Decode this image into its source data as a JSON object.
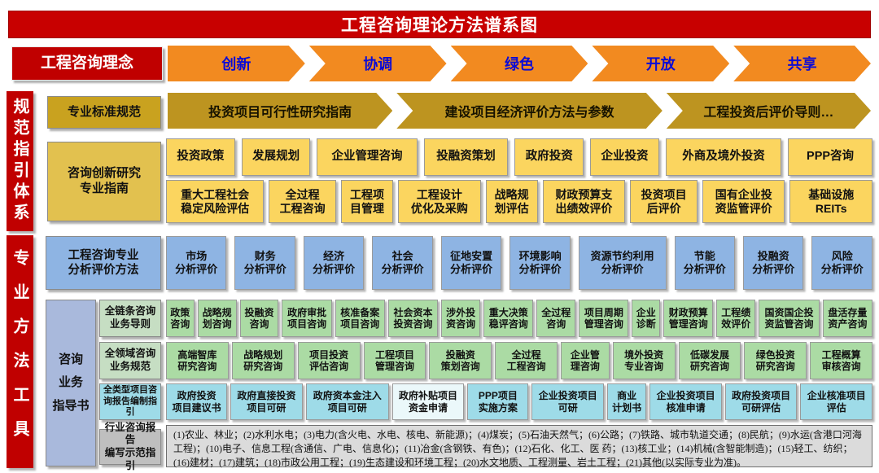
{
  "title": "工程咨询理论方法谱系图",
  "concepts": {
    "label": "工程咨询理念",
    "items": [
      "创新",
      "协调",
      "绿色",
      "开放",
      "共享"
    ]
  },
  "side_bars": {
    "top": "规范指引体系",
    "bottom": "专业方法工具"
  },
  "standards": {
    "label": "专业标准规范",
    "items": [
      "投资项目可行性研究指南",
      "建设项目经济评价方法与参数",
      "工程投资后评价导则…"
    ]
  },
  "innovation_guides": {
    "label": "咨询创新研究\n专业指南",
    "row1": [
      "投资政策",
      "发展规划",
      "企业管理咨询",
      "投融资策划",
      "政府投资",
      "企业投资",
      "外商及境外投资",
      "PPP咨询"
    ],
    "row2": [
      "重大工程社会\n稳定风险评估",
      "全过程\n工程咨询",
      "工程项\n目管理",
      "工程设计\n优化及采购",
      "战略规\n划评估",
      "财政预算支\n出绩效评价",
      "投资项目\n后评价",
      "国有企业投\n资监管评价",
      "基础设施\nREITs"
    ]
  },
  "analysis_methods": {
    "label": "工程咨询专业\n分析评价方法",
    "items": [
      "市场\n分析评价",
      "财务\n分析评价",
      "经济\n分析评价",
      "社会\n分析评价",
      "征地安置\n分析评价",
      "环境影响\n分析评价",
      "资源节约利用\n分析评价",
      "节能\n分析评价",
      "投融资\n分析评价",
      "风险\n分析评价"
    ]
  },
  "guidebooks": {
    "label": "咨询\n业务\n指导书",
    "chain": {
      "label": "全链条咨询\n业务导则",
      "items": [
        "政策\n咨询",
        "战略规\n划咨询",
        "投融资\n咨询",
        "政府审批\n项目咨询",
        "核准备案\n项目咨询",
        "社会资本\n投资咨询",
        "涉外投\n资咨询",
        "重大决策\n稳评咨询",
        "全过程\n咨询",
        "项目周期\n管理咨询",
        "企业\n诊断",
        "财政预算\n管理咨询",
        "工程绩\n效评价",
        "国资国企投\n资监管咨询",
        "盘活存量\n资产咨询"
      ]
    },
    "domain": {
      "label": "全领域咨询\n业务规范",
      "items": [
        "高端智库\n研究咨询",
        "战略规划\n研究咨询",
        "项目投资\n评估咨询",
        "工程项目\n管理咨询",
        "投融资\n策划咨询",
        "全过程\n工程咨询",
        "企业管\n理咨询",
        "境外投资\n专业咨询",
        "低碳发展\n研究咨询",
        "绿色投资\n研究咨询",
        "工程概算\n审核咨询"
      ]
    },
    "report": {
      "label": "全类型项目咨\n询报告编制指引",
      "items": [
        "政府投资\n项目建议书",
        "政府直接投资\n项目可研",
        "政府资本金注入\n项目可研",
        "政府补贴项目\n资金申请",
        "PPP项目\n实施方案",
        "企业投资项目\n可研",
        "商业\n计划书",
        "企业投资项目\n核准申请",
        "政府投资项目\n可研评估",
        "企业核准项目\n评估"
      ]
    },
    "industry": {
      "label": "行业咨询报告\n编写示范指引",
      "text": "(1)农业、林业；(2)水利水电；(3)电力(含火电、水电、核电、新能源)；(4)煤炭；(5)石油天然气；(6)公路；(7)铁路、城市轨道交通；(8)民航；(9)水运(含港口河海工程)；(10)电子、信息工程(含通信、广电、信息化)；(11)冶金(含钢铁、有色)；(12)石化、化工、医 药；(13)核工业；(14)机械(含智能制造)；(15)轻工、纺织；(16)建材；(17)建筑；(18)市政公用工程；(19)生态建设和环境工程；(20)水文地质、工程测量、岩土工程；(21)其他(以实际专业为准)。"
    }
  },
  "colors": {
    "red": "#C00000",
    "orange": "#F28A20",
    "arrow_text_blue": "#0B0BD6",
    "gold": "#BD9420",
    "yellow": "#FBD55F",
    "yellow_label": "#E2C14F",
    "blue": "#8EB4E3",
    "periwinkle": "#A9B9DC",
    "green_label": "#C6DEC3",
    "green": "#ABDBA4",
    "cyan": "#9EDBE8",
    "cyan_light": "#EBF8FA",
    "gray_label": "#BFBFBF",
    "gray_box": "#DBDBDB"
  }
}
